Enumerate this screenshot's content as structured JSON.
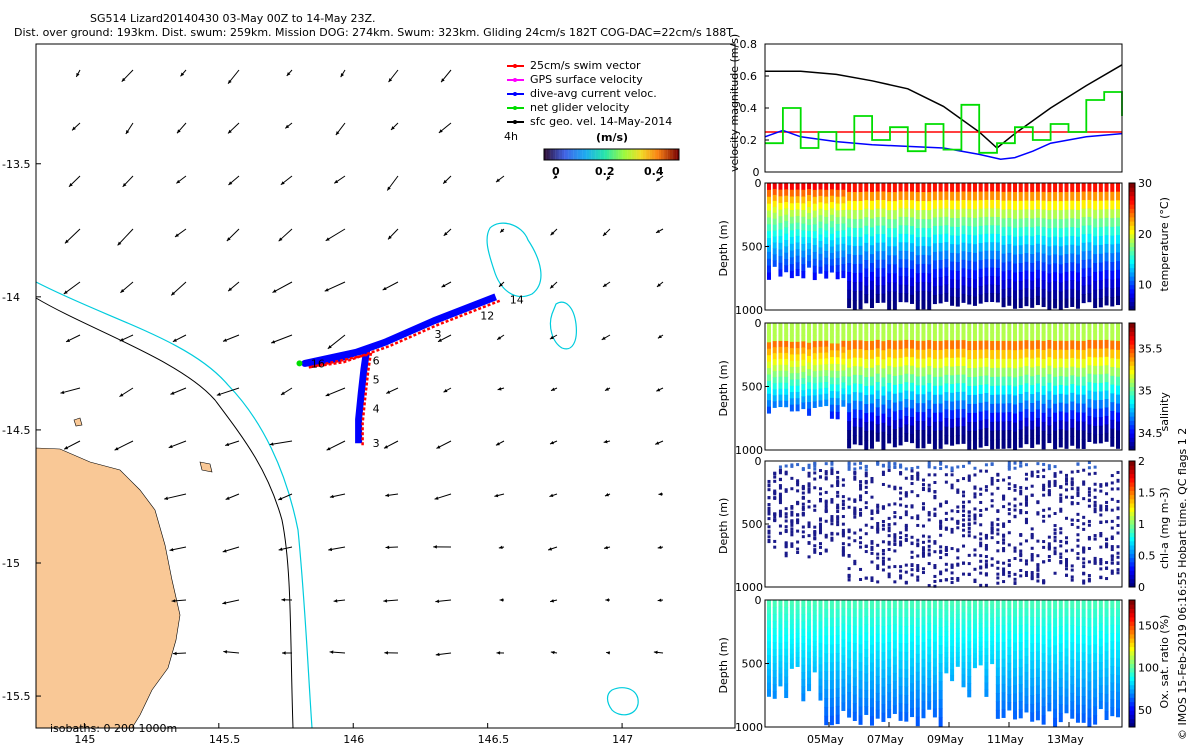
{
  "header": {
    "line1": "SG514 Lizard20140430 03-May 00Z to 14-May 23Z.",
    "line2": "Dist. over ground: 193km. Dist. swum: 259km. Mission DOG: 274km. Swum: 323km. Gliding 24cm/s 182T COG-DAC=22cm/s 188T"
  },
  "footer": "© IMOS 15-Feb-2019 06:16:55 Hobart time. QC flags 1  2",
  "map": {
    "xticks": [
      "145",
      "145.5",
      "146",
      "146.5",
      "147"
    ],
    "yticks": [
      "-13.5",
      "-14",
      "-14.5",
      "-15",
      "-15.5"
    ],
    "xlim": [
      144.82,
      147.42
    ],
    "ylim": [
      -15.62,
      -13.05
    ],
    "legend": [
      {
        "label": "25cm/s swim vector",
        "color": "#ff0000"
      },
      {
        "label": "GPS surface velocity",
        "color": "#ff00ff"
      },
      {
        "label": "dive-avg current veloc.",
        "color": "#0000ff"
      },
      {
        "label": "net glider velocity",
        "color": "#00dd00"
      },
      {
        "label": "sfc geo. vel. 14-May-2014",
        "color": "#000000"
      }
    ],
    "colorbar": {
      "title": "(m/s)",
      "ticks": [
        "0",
        "0.2",
        "0.4"
      ],
      "range": [
        0,
        0.5
      ]
    },
    "time_label": "4h",
    "isobath_label": "isobaths: 0   200   1000m",
    "track_labels": [
      {
        "text": "14",
        "lon": 146.56,
        "lat": -14.01
      },
      {
        "text": "12",
        "lon": 146.45,
        "lat": -14.07
      },
      {
        "text": "3",
        "lon": 146.28,
        "lat": -14.14
      },
      {
        "text": "16",
        "lon": 145.82,
        "lat": -14.25
      },
      {
        "text": "6",
        "lon": 146.05,
        "lat": -14.24
      },
      {
        "text": "5",
        "lon": 146.05,
        "lat": -14.31
      },
      {
        "text": "4",
        "lon": 146.05,
        "lat": -14.42
      },
      {
        "text": "3",
        "lon": 146.05,
        "lat": -14.55
      }
    ]
  },
  "chart_data": [
    {
      "type": "line",
      "ylabel": "velocity magnitude (m/s)",
      "ylim": [
        0,
        0.8
      ],
      "yticks": [
        "0",
        "0.2",
        "0.4",
        "0.6",
        "0.8"
      ],
      "series": [
        {
          "color": "#000000",
          "x": [
            0,
            0.1,
            0.2,
            0.3,
            0.4,
            0.5,
            0.6,
            0.65,
            0.7,
            0.8,
            0.9,
            1.0
          ],
          "values": [
            0.63,
            0.63,
            0.61,
            0.57,
            0.52,
            0.41,
            0.25,
            0.15,
            0.24,
            0.4,
            0.54,
            0.67
          ]
        },
        {
          "color": "#ff0000",
          "x": [
            0,
            1.0
          ],
          "values": [
            0.25,
            0.25
          ]
        },
        {
          "color": "#0000ff",
          "x": [
            0,
            0.05,
            0.1,
            0.2,
            0.3,
            0.4,
            0.5,
            0.6,
            0.66,
            0.7,
            0.75,
            0.8,
            0.9,
            1.0
          ],
          "values": [
            0.22,
            0.26,
            0.22,
            0.19,
            0.17,
            0.16,
            0.15,
            0.11,
            0.08,
            0.09,
            0.13,
            0.18,
            0.22,
            0.24
          ]
        },
        {
          "color": "#00dd00",
          "x": [
            0,
            0.05,
            0.1,
            0.15,
            0.2,
            0.25,
            0.3,
            0.35,
            0.4,
            0.45,
            0.5,
            0.55,
            0.6,
            0.65,
            0.7,
            0.75,
            0.8,
            0.85,
            0.9,
            0.95,
            1.0
          ],
          "values": [
            0.18,
            0.4,
            0.15,
            0.25,
            0.14,
            0.35,
            0.2,
            0.28,
            0.13,
            0.3,
            0.14,
            0.42,
            0.12,
            0.18,
            0.28,
            0.2,
            0.3,
            0.25,
            0.45,
            0.5,
            0.35
          ]
        }
      ]
    },
    {
      "type": "heatmap",
      "ylabel": "Depth (m)",
      "cbar_label": "temperature (°C)",
      "cbar_ticks": [
        "10",
        "20",
        "30"
      ],
      "clim": [
        5,
        30
      ],
      "ylim": [
        1000,
        0
      ],
      "yticks": [
        "0",
        "500",
        "1000"
      ]
    },
    {
      "type": "heatmap",
      "ylabel": "Depth (m)",
      "cbar_label": "salinity",
      "cbar_ticks": [
        "34.5",
        "35",
        "35.5"
      ],
      "clim": [
        34.3,
        35.8
      ],
      "ylim": [
        1000,
        0
      ],
      "yticks": [
        "0",
        "500",
        "1000"
      ]
    },
    {
      "type": "scatter",
      "ylabel": "Depth (m)",
      "cbar_label": "chl-a (mg m-3)",
      "cbar_ticks": [
        "0",
        "0.5",
        "1",
        "1.5",
        "2"
      ],
      "clim": [
        0,
        2
      ],
      "ylim": [
        1000,
        0
      ],
      "yticks": [
        "0",
        "500",
        "1000"
      ]
    },
    {
      "type": "heatmap",
      "ylabel": "Depth (m)",
      "cbar_label": "Ox. sat. ratio (%)",
      "cbar_ticks": [
        "50",
        "100",
        "150"
      ],
      "clim": [
        30,
        180
      ],
      "ylim": [
        1000,
        0
      ],
      "yticks": [
        "0",
        "500",
        "1000"
      ],
      "xticks": [
        "05May",
        "07May",
        "09May",
        "11May",
        "13May"
      ]
    }
  ]
}
